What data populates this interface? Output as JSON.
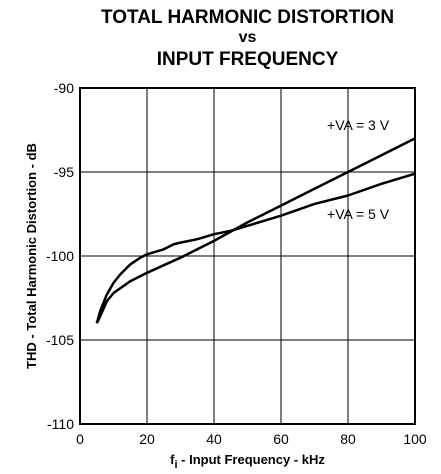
{
  "chart_data": {
    "type": "line",
    "title": "TOTAL HARMONIC DISTORTION",
    "title_vs": "vs",
    "subtitle": "INPUT FREQUENCY",
    "xlabel_prefix": "f",
    "xlabel_sub": "i",
    "xlabel_rest": " - Input Frequency - kHz",
    "ylabel": "THD - Total Harmonic Distortion - dB",
    "xlim": [
      0,
      100
    ],
    "ylim": [
      -110,
      -90
    ],
    "x_ticks": [
      0,
      20,
      40,
      60,
      80,
      100
    ],
    "y_ticks": [
      -90,
      -95,
      -100,
      -105,
      -110
    ],
    "grid": true,
    "legend": "none",
    "series": [
      {
        "name": "+VA = 3 V",
        "x": [
          5,
          6,
          8,
          10,
          15,
          20,
          30,
          40,
          50,
          60,
          70,
          80,
          90,
          100
        ],
        "y": [
          -104,
          -103.6,
          -102.7,
          -102.2,
          -101.5,
          -101.0,
          -100.1,
          -99.1,
          -98.0,
          -97.0,
          -96.0,
          -95.0,
          -94.0,
          -93.0
        ]
      },
      {
        "name": "+VA = 5 V",
        "x": [
          5,
          6,
          8,
          10,
          12,
          15,
          18,
          20,
          25,
          28,
          30,
          35,
          40,
          45,
          50,
          60,
          70,
          80,
          90,
          100
        ],
        "y": [
          -104,
          -103.3,
          -102.3,
          -101.6,
          -101.1,
          -100.5,
          -100.1,
          -99.9,
          -99.6,
          -99.3,
          -99.2,
          -99.0,
          -98.7,
          -98.5,
          -98.2,
          -97.6,
          -96.9,
          -96.4,
          -95.7,
          -95.1
        ]
      }
    ],
    "annotations": [
      {
        "text": "+VA = 3 V",
        "x": 83,
        "y": -92.5
      },
      {
        "text": "+VA = 5 V",
        "x": 83,
        "y": -97.8
      }
    ]
  }
}
